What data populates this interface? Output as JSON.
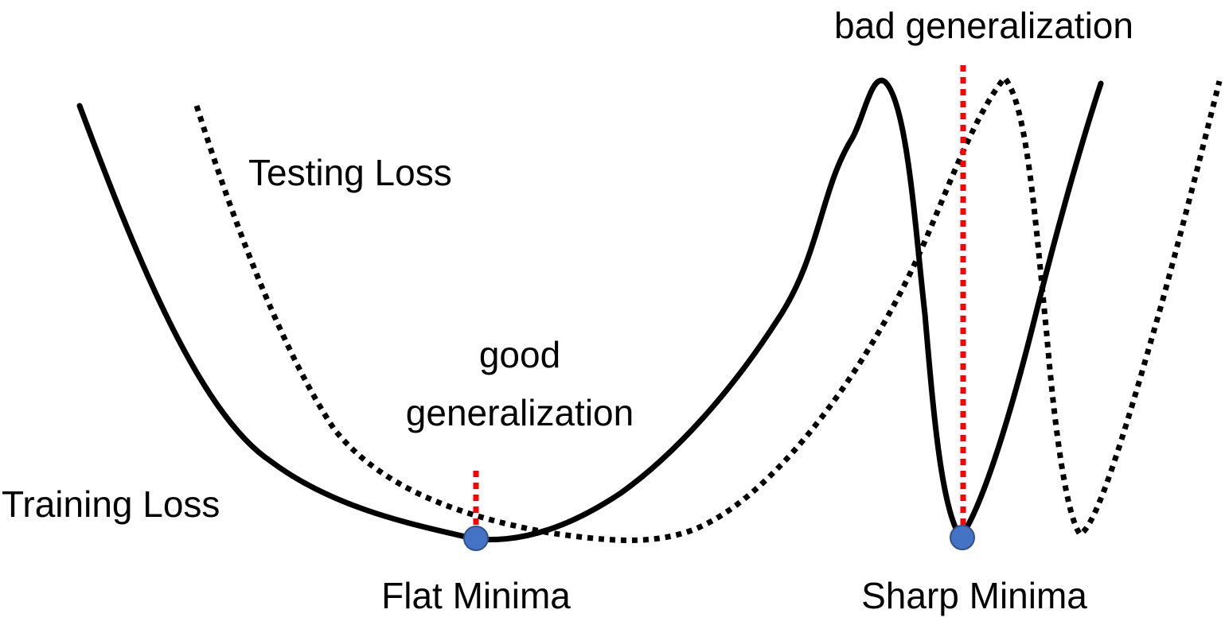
{
  "labels": {
    "bad_generalization": "bad generalization",
    "testing_loss": "Testing Loss",
    "good_generalization_line1": "good",
    "good_generalization_line2": "generalization",
    "training_loss": "Training Loss",
    "flat_minima": "Flat Minima",
    "sharp_minima": "Sharp Minima"
  },
  "colors": {
    "training_curve": "#000000",
    "testing_curve": "#000000",
    "generalization_marker": "#ff0000",
    "minima_point": "#4472c4",
    "minima_point_stroke": "#2f528f",
    "background": "#ffffff"
  },
  "curves": {
    "training_loss_style": "solid",
    "testing_loss_style": "dotted"
  }
}
